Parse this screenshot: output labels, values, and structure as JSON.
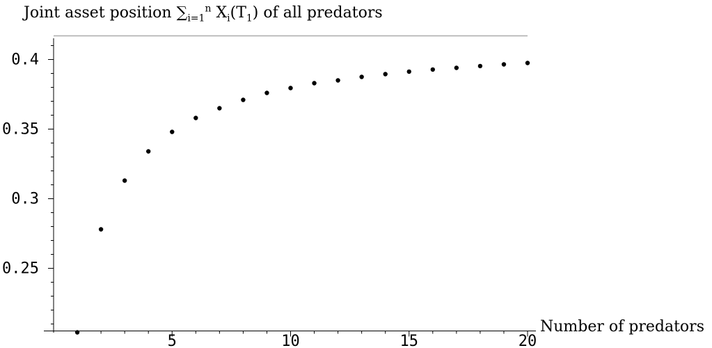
{
  "chart_data": {
    "type": "scatter",
    "title_parts": {
      "prefix": "Joint asset position ",
      "sum": "∑",
      "sum_sub": "i=1",
      "sum_sup": "n",
      "x": " X",
      "x_sub": "i",
      "paren_open": "(T",
      "t_sub": "1",
      "suffix": ") of all predators"
    },
    "xlabel": "Number of predators",
    "ylabel": "",
    "xlim": [
      0,
      20
    ],
    "ylim": [
      0.205,
      0.417
    ],
    "reference_line_y": 0.417,
    "x_ticks": [
      5,
      10,
      15,
      20
    ],
    "x_tick_labels": [
      "5",
      "10",
      "15",
      "20"
    ],
    "y_ticks": [
      0.25,
      0.3,
      0.35,
      0.4
    ],
    "y_tick_labels": [
      "0.25",
      "0.3",
      "0.35",
      "0.4"
    ],
    "grid": false,
    "series": [
      {
        "x": [
          1,
          2,
          3,
          4,
          5,
          6,
          7,
          8,
          9,
          10,
          11,
          12,
          13,
          14,
          15,
          16,
          17,
          18,
          19,
          20
        ],
        "y": [
          0.204,
          0.278,
          0.313,
          0.334,
          0.348,
          0.358,
          0.365,
          0.371,
          0.376,
          0.3795,
          0.383,
          0.385,
          0.3875,
          0.3895,
          0.3913,
          0.3928,
          0.394,
          0.3953,
          0.3965,
          0.3975
        ]
      }
    ]
  }
}
